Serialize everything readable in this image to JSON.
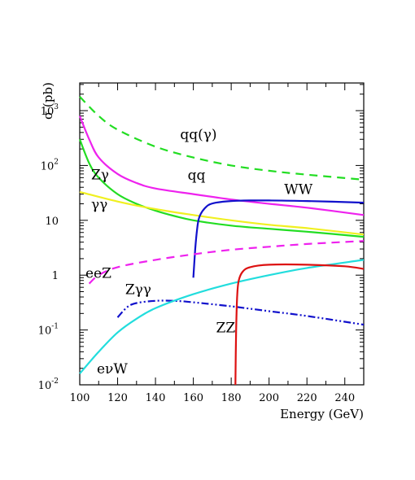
{
  "chart_data": {
    "type": "line",
    "xlabel": "Energy (GeV)",
    "ylabel": "σ (pb)",
    "x_scale": "linear",
    "y_scale": "log",
    "xlim": [
      100,
      250
    ],
    "ylim": [
      0.01,
      3000
    ],
    "x_ticks": [
      100,
      120,
      140,
      160,
      180,
      200,
      220,
      240
    ],
    "y_ticks": [
      {
        "value": 0.01,
        "base": "10",
        "exp": "-2"
      },
      {
        "value": 0.1,
        "base": "10",
        "exp": "-1"
      },
      {
        "value": 1,
        "base": "1",
        "exp": ""
      },
      {
        "value": 10,
        "base": "10",
        "exp": ""
      },
      {
        "value": 100,
        "base": "10",
        "exp": "2"
      },
      {
        "value": 1000,
        "base": "10",
        "exp": "3"
      }
    ],
    "grid": false,
    "series": [
      {
        "name": "qq(γ)",
        "color": "#22dd22",
        "dash": "dashed",
        "x": [
          100,
          110,
          120,
          140,
          160,
          180,
          200,
          220,
          250
        ],
        "y": [
          1800,
          800,
          450,
          220,
          140,
          100,
          80,
          68,
          55
        ]
      },
      {
        "name": "qq",
        "color": "#ee22ee",
        "dash": "solid",
        "x": [
          100,
          105,
          110,
          120,
          130,
          140,
          160,
          180,
          200,
          220,
          250
        ],
        "y": [
          800,
          300,
          140,
          70,
          48,
          38,
          30,
          24,
          20,
          17,
          12.5
        ]
      },
      {
        "name": "Zγ",
        "color": "#22dd22",
        "dash": "solid",
        "x": [
          100,
          105,
          110,
          120,
          130,
          140,
          150,
          160,
          180,
          200,
          220,
          250
        ],
        "y": [
          300,
          110,
          60,
          30,
          20,
          15,
          12,
          10,
          8,
          7,
          6.2,
          5
        ]
      },
      {
        "name": "γγ",
        "color": "#f0f020",
        "dash": "solid",
        "x": [
          100,
          120,
          140,
          160,
          180,
          200,
          220,
          250
        ],
        "y": [
          33,
          22,
          16,
          12.5,
          10,
          8.3,
          7.2,
          5.5
        ]
      },
      {
        "name": "WW",
        "color": "#1111cc",
        "dash": "solid",
        "x": [
          160,
          161,
          162,
          163,
          165,
          168,
          172,
          180,
          190,
          200,
          220,
          250
        ],
        "y": [
          0.9,
          3,
          7,
          11,
          15,
          19,
          21,
          22.5,
          23,
          23,
          22.5,
          21
        ]
      },
      {
        "name": "eeZ",
        "color": "#ee22ee",
        "dash": "dashed",
        "x": [
          105,
          110,
          120,
          140,
          160,
          180,
          200,
          220,
          250
        ],
        "y": [
          0.7,
          1.0,
          1.4,
          1.9,
          2.4,
          2.9,
          3.3,
          3.7,
          4.2
        ]
      },
      {
        "name": "Zγγ",
        "color": "#1111cc",
        "dash": "dashdot",
        "x": [
          120,
          125,
          130,
          140,
          150,
          160,
          180,
          200,
          220,
          250
        ],
        "y": [
          0.17,
          0.26,
          0.31,
          0.34,
          0.34,
          0.32,
          0.27,
          0.22,
          0.18,
          0.125
        ]
      },
      {
        "name": "eνW",
        "color": "#22dddd",
        "dash": "solid",
        "x": [
          100,
          110,
          120,
          130,
          140,
          160,
          180,
          200,
          220,
          250
        ],
        "y": [
          0.016,
          0.04,
          0.09,
          0.16,
          0.25,
          0.45,
          0.7,
          1.0,
          1.35,
          1.9
        ]
      },
      {
        "name": "ZZ",
        "color": "#dd1111",
        "dash": "solid",
        "x": [
          182.2,
          182.6,
          183.2,
          184,
          186,
          190,
          200,
          220,
          240,
          250
        ],
        "y": [
          0.01,
          0.1,
          0.45,
          0.8,
          1.15,
          1.4,
          1.55,
          1.55,
          1.45,
          1.3
        ]
      }
    ],
    "annotations": [
      {
        "text": "qq(γ)",
        "x": 153,
        "y": 300
      },
      {
        "text": "qq",
        "x": 157,
        "y": 55
      },
      {
        "text": "Zγ",
        "x": 106,
        "y": 56
      },
      {
        "text": "γγ",
        "x": 106,
        "y": 16
      },
      {
        "text": "WW",
        "x": 208,
        "y": 30
      },
      {
        "text": "eeZ",
        "x": 103,
        "y": 0.9
      },
      {
        "text": "Zγγ",
        "x": 124,
        "y": 0.45
      },
      {
        "text": "ZZ",
        "x": 172,
        "y": 0.09
      },
      {
        "text": "eνW",
        "x": 109,
        "y": 0.016
      }
    ]
  }
}
